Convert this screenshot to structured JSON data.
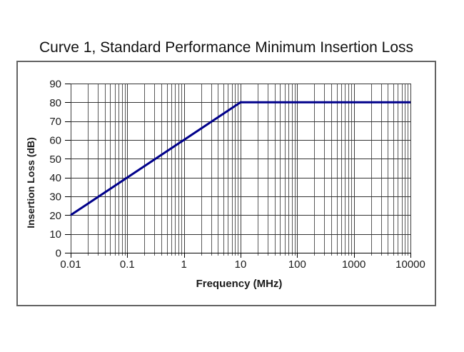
{
  "chart": {
    "title": "Curve 1, Standard Performance Minimum Insertion Loss",
    "x_axis_title": "Frequency (MHz)",
    "y_axis_title": "Insertion Loss (dB)"
  },
  "chart_data": {
    "type": "line",
    "title": "Curve 1, Standard Performance Minimum Insertion Loss",
    "xlabel": "Frequency (MHz)",
    "ylabel": "Insertion Loss (dB)",
    "x_scale": "log",
    "y_scale": "linear",
    "x_range": [
      0.01,
      10000
    ],
    "y_range": [
      0,
      90
    ],
    "x_ticks": [
      0.01,
      0.1,
      1,
      10,
      100,
      1000,
      10000
    ],
    "x_tick_labels": [
      "0.01",
      "0.1",
      "1",
      "10",
      "100",
      "1000",
      "10000"
    ],
    "y_ticks": [
      0,
      10,
      20,
      30,
      40,
      50,
      60,
      70,
      80,
      90
    ],
    "y_tick_labels": [
      "0",
      "10",
      "20",
      "30",
      "40",
      "50",
      "60",
      "70",
      "80",
      "90"
    ],
    "grid": true,
    "minor_gridlines": "log multiples 2-9 per decade, vertical only",
    "legend": "none",
    "series": [
      {
        "name": "Curve 1 minimum insertion loss",
        "points": [
          [
            0.01,
            20
          ],
          [
            10,
            80
          ],
          [
            10000,
            80
          ]
        ],
        "color": "#00008B",
        "width": 3
      }
    ],
    "colors": {
      "curve": "#00008B",
      "minor_gridline": "#5a5a5a",
      "major_gridline": "#3c3c3c",
      "horizontal_gridline": "#333333",
      "axis": "#000000",
      "plot_background": "#ffffff",
      "chart_border": "#636363"
    }
  }
}
